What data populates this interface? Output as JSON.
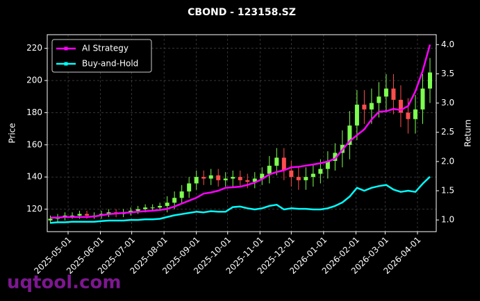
{
  "chart_data": {
    "type": "candlestick_returns",
    "title": "CBOND - 123158.SZ",
    "ylabel": "Price",
    "y2label": "Return",
    "watermark": "uqtool.com",
    "x": [
      "2025-04-14",
      "2025-04-21",
      "2025-04-28",
      "2025-05-05",
      "2025-05-12",
      "2025-05-19",
      "2025-05-26",
      "2025-06-02",
      "2025-06-09",
      "2025-06-16",
      "2025-06-23",
      "2025-06-30",
      "2025-07-07",
      "2025-07-14",
      "2025-07-21",
      "2025-07-28",
      "2025-08-04",
      "2025-08-11",
      "2025-08-18",
      "2025-08-25",
      "2025-09-01",
      "2025-09-08",
      "2025-09-15",
      "2025-09-22",
      "2025-09-29",
      "2025-10-06",
      "2025-10-13",
      "2025-10-20",
      "2025-10-27",
      "2025-11-03",
      "2025-11-10",
      "2025-11-17",
      "2025-11-24",
      "2025-12-01",
      "2025-12-08",
      "2025-12-15",
      "2025-12-22",
      "2025-12-29",
      "2026-01-05",
      "2026-01-12",
      "2026-01-19",
      "2026-01-26",
      "2026-02-02",
      "2026-02-09",
      "2026-02-16",
      "2026-02-23",
      "2026-03-02",
      "2026-03-09",
      "2026-03-16",
      "2026-03-23",
      "2026-03-30",
      "2026-04-06",
      "2026-04-13"
    ],
    "ohlc": {
      "up_color": "#7dff4f",
      "down_color": "#ff4d4d",
      "open": [
        113,
        114,
        115,
        116,
        116,
        117,
        116,
        116,
        117,
        118,
        117,
        118,
        119,
        120,
        121,
        121,
        122,
        124,
        127,
        131,
        136,
        140,
        139,
        141,
        138,
        139,
        140,
        138,
        137,
        139,
        142,
        147,
        152,
        144,
        140,
        138,
        140,
        142,
        145,
        150,
        155,
        160,
        172,
        185,
        182,
        186,
        190,
        195,
        188,
        180,
        176,
        182,
        195
      ],
      "high": [
        116,
        117,
        118,
        118,
        119,
        119,
        118,
        119,
        120,
        120,
        120,
        121,
        122,
        123,
        123,
        124,
        128,
        131,
        135,
        140,
        144,
        144,
        145,
        145,
        143,
        144,
        144,
        142,
        143,
        146,
        153,
        158,
        158,
        150,
        146,
        146,
        148,
        151,
        156,
        161,
        169,
        181,
        194,
        194,
        195,
        199,
        204,
        204,
        197,
        189,
        191,
        204,
        214
      ],
      "low": [
        111,
        112,
        113,
        114,
        114,
        114,
        114,
        114,
        115,
        115,
        115,
        116,
        117,
        118,
        119,
        119,
        118,
        120,
        123,
        127,
        132,
        135,
        135,
        134,
        134,
        134,
        134,
        133,
        133,
        135,
        136,
        141,
        138,
        134,
        132,
        132,
        134,
        136,
        139,
        144,
        146,
        151,
        163,
        173,
        173,
        177,
        181,
        179,
        171,
        167,
        167,
        173,
        186
      ],
      "close": [
        114,
        115,
        116,
        116,
        117,
        116,
        116,
        117,
        118,
        117,
        118,
        119,
        120,
        121,
        121,
        122,
        124,
        127,
        131,
        136,
        140,
        139,
        141,
        138,
        139,
        140,
        138,
        137,
        139,
        142,
        147,
        152,
        144,
        140,
        138,
        140,
        142,
        145,
        150,
        155,
        160,
        172,
        185,
        182,
        186,
        190,
        195,
        188,
        180,
        176,
        182,
        195,
        205
      ]
    },
    "series": [
      {
        "name": "AI Strategy",
        "color": "#ff00ff",
        "axis": "y2",
        "values": [
          1.04,
          1.04,
          1.05,
          1.05,
          1.05,
          1.05,
          1.06,
          1.08,
          1.1,
          1.11,
          1.12,
          1.13,
          1.14,
          1.15,
          1.16,
          1.17,
          1.19,
          1.23,
          1.28,
          1.33,
          1.38,
          1.45,
          1.47,
          1.5,
          1.55,
          1.56,
          1.57,
          1.6,
          1.64,
          1.7,
          1.78,
          1.82,
          1.85,
          1.9,
          1.91,
          1.93,
          1.95,
          1.97,
          2.0,
          2.05,
          2.2,
          2.35,
          2.45,
          2.55,
          2.72,
          2.85,
          2.86,
          2.9,
          2.88,
          2.95,
          3.2,
          3.55,
          4.0
        ]
      },
      {
        "name": "Buy-and-Hold",
        "color": "#00ffff",
        "axis": "y2",
        "values": [
          0.95,
          0.96,
          0.96,
          0.97,
          0.97,
          0.97,
          0.97,
          0.98,
          0.99,
          0.99,
          0.99,
          1.0,
          1.0,
          1.01,
          1.01,
          1.02,
          1.05,
          1.08,
          1.1,
          1.12,
          1.14,
          1.13,
          1.15,
          1.14,
          1.14,
          1.22,
          1.23,
          1.2,
          1.18,
          1.2,
          1.24,
          1.26,
          1.18,
          1.2,
          1.19,
          1.19,
          1.18,
          1.18,
          1.2,
          1.24,
          1.3,
          1.4,
          1.55,
          1.5,
          1.55,
          1.58,
          1.6,
          1.52,
          1.48,
          1.5,
          1.48,
          1.62,
          1.74
        ]
      }
    ],
    "xlim": [
      "2025-04-11",
      "2026-04-19"
    ],
    "xticks": [
      "2025-05-01",
      "2025-06-01",
      "2025-07-01",
      "2025-08-01",
      "2025-09-01",
      "2025-10-01",
      "2025-11-01",
      "2025-12-01",
      "2026-01-01",
      "2026-02-01",
      "2026-03-01",
      "2026-04-01"
    ],
    "ylim": [
      106,
      228.5
    ],
    "yticks": [
      120,
      140,
      160,
      180,
      200,
      220
    ],
    "y2lim": [
      0.8,
      4.17
    ],
    "y2ticks": [
      {
        "value": 1,
        "label": "1.0"
      },
      1.5,
      {
        "value": 2,
        "label": "2.0"
      },
      2.5,
      {
        "value": 3,
        "label": "3.0"
      },
      3.5,
      {
        "value": 4,
        "label": "4.0"
      }
    ],
    "grid": true,
    "legend": "upper left"
  }
}
